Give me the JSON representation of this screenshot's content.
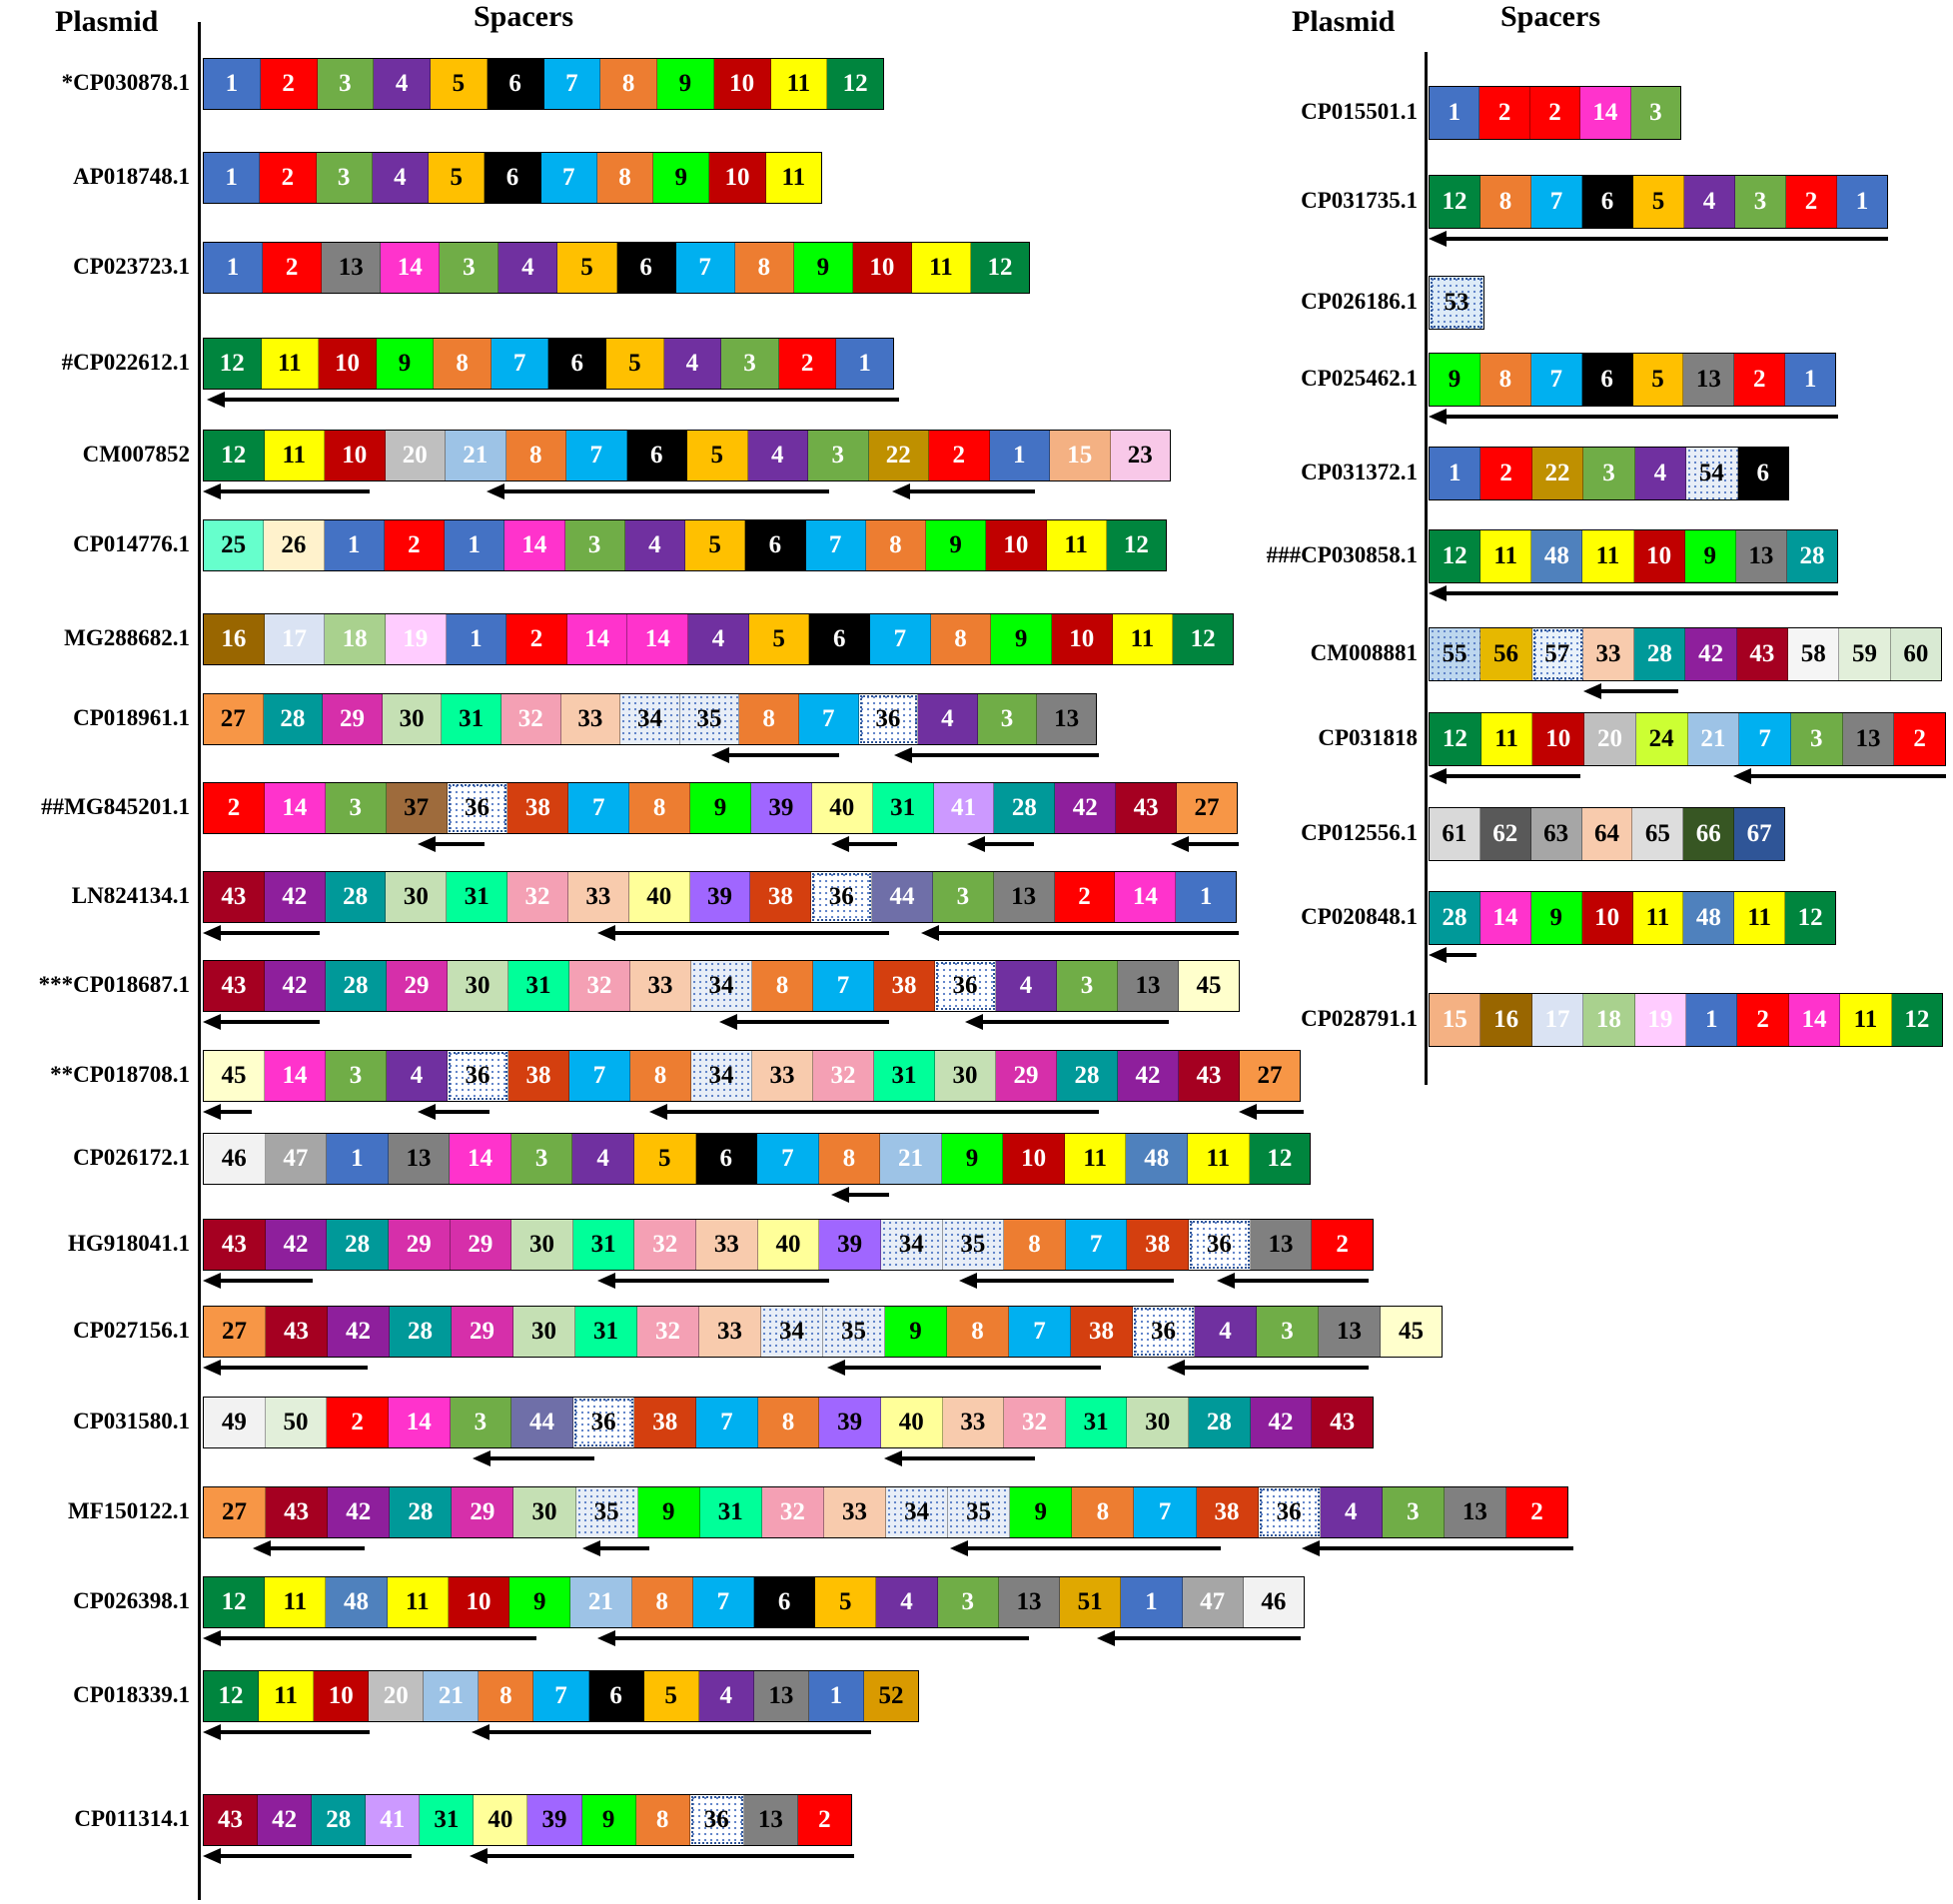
{
  "headers": {
    "left": {
      "plasmid": "Plasmid",
      "spacers": "Spacers"
    },
    "right": {
      "plasmid": "Plasmid",
      "spacers": "Spacers"
    }
  },
  "spacer_colors": {
    "1": "#4472C4",
    "2": "#FF0000",
    "3": "#70AD47",
    "4": "#7030A0",
    "5": "#FFC000",
    "6": "#000000",
    "7": "#00B0F0",
    "8": "#ED7D31",
    "9": "#00FF00",
    "10": "#C00000",
    "11": "#FFFF00",
    "12": "#00853E",
    "13": "#808080",
    "14": "#FF33CC",
    "15": "#F4B183",
    "16": "#996600",
    "17": "#DAE3F3",
    "18": "#A9D18E",
    "19": "#FFCCFF",
    "20": "#BFBFBF",
    "21": "#9DC3E6",
    "22": "#BF9000",
    "23": "#F8C8E8",
    "24": "#CCFF33",
    "25": "#66FFCC",
    "26": "#FFF2CC",
    "27": "#F79646",
    "28": "#009999",
    "29": "#D62FAA",
    "30": "#C5E0B4",
    "31": "#00FF99",
    "32": "#F4A0B4",
    "33": "#F8CBAD",
    "34": "#E8EEF7",
    "35": "#E8EEF7",
    "36": "#FFFFFF",
    "37": "#9E6B3C",
    "38": "#D43F0F",
    "39": "#A066FF",
    "40": "#FFFF99",
    "41": "#CC99FF",
    "42": "#8E1F9C",
    "43": "#A50021",
    "44": "#6F6FA8",
    "45": "#FFFFCC",
    "46": "#F2F2F2",
    "47": "#A6A6A6",
    "48": "#4F81BD",
    "49": "#F2F2F2",
    "50": "#E2EFDA",
    "51": "#E0A800",
    "52": "#D99A00",
    "53": "#DDEBF7",
    "54": "#E8EEF7",
    "55": "#BDD7EE",
    "56": "#E6B800",
    "57": "#EAF2FA",
    "58": "#F5F5F5",
    "59": "#E2EFDA",
    "60": "#D9EAD3",
    "61": "#D9D9D9",
    "62": "#595959",
    "63": "#A6A6A6",
    "64": "#F8CBAD",
    "65": "#DDDDDD",
    "66": "#375623",
    "67": "#2F5597"
  },
  "light_text": [
    "1",
    "2",
    "3",
    "4",
    "6",
    "7",
    "8",
    "10",
    "12",
    "14",
    "15",
    "16",
    "17",
    "18",
    "19",
    "20",
    "21",
    "22",
    "28",
    "29",
    "32",
    "38",
    "41",
    "42",
    "43",
    "44",
    "47",
    "48",
    "62",
    "66",
    "67"
  ],
  "left": [
    {
      "label": "*CP030878.1",
      "spacers": [
        "1",
        "2",
        "3",
        "4",
        "5",
        "6",
        "7",
        "8",
        "9",
        "10",
        "11",
        "12"
      ]
    },
    {
      "label": "AP018748.1",
      "spacers": [
        "1",
        "2",
        "3",
        "4",
        "5",
        "6",
        "7",
        "8",
        "9",
        "10",
        "11"
      ]
    },
    {
      "label": "CP023723.1",
      "spacers": [
        "1",
        "2",
        "13",
        "14",
        "3",
        "4",
        "5",
        "6",
        "7",
        "8",
        "9",
        "10",
        "11",
        "12"
      ]
    },
    {
      "label": "#CP022612.1",
      "spacers": [
        "12",
        "11",
        "10",
        "9",
        "8",
        "7",
        "6",
        "5",
        "4",
        "3",
        "2",
        "1"
      ]
    },
    {
      "label": "CM007852",
      "spacers": [
        "12",
        "11",
        "10",
        "20",
        "21",
        "8",
        "7",
        "6",
        "5",
        "4",
        "3",
        "22",
        "2",
        "1",
        "15",
        "23"
      ]
    },
    {
      "label": "CP014776.1",
      "spacers": [
        "25",
        "26",
        "1",
        "2",
        "1",
        "14",
        "3",
        "4",
        "5",
        "6",
        "7",
        "8",
        "9",
        "10",
        "11",
        "12"
      ]
    },
    {
      "label": "MG288682.1",
      "spacers": [
        "16",
        "17",
        "18",
        "19",
        "1",
        "2",
        "14",
        "14",
        "4",
        "5",
        "6",
        "7",
        "8",
        "9",
        "10",
        "11",
        "12"
      ]
    },
    {
      "label": "CP018961.1",
      "spacers": [
        "27",
        "28",
        "29",
        "30",
        "31",
        "32",
        "33",
        "34",
        "35",
        "8",
        "7",
        "36",
        "4",
        "3",
        "13"
      ]
    },
    {
      "label": "##MG845201.1",
      "spacers": [
        "2",
        "14",
        "3",
        "37",
        "36",
        "38",
        "7",
        "8",
        "9",
        "39",
        "40",
        "31",
        "41",
        "28",
        "42",
        "43",
        "27"
      ]
    },
    {
      "label": "LN824134.1",
      "spacers": [
        "43",
        "42",
        "28",
        "30",
        "31",
        "32",
        "33",
        "40",
        "39",
        "38",
        "36",
        "44",
        "3",
        "13",
        "2",
        "14",
        "1"
      ]
    },
    {
      "label": "***CP018687.1",
      "spacers": [
        "43",
        "42",
        "28",
        "29",
        "30",
        "31",
        "32",
        "33",
        "34",
        "8",
        "7",
        "38",
        "36",
        "4",
        "3",
        "13",
        "45"
      ]
    },
    {
      "label": "**CP018708.1",
      "spacers": [
        "45",
        "14",
        "3",
        "4",
        "36",
        "38",
        "7",
        "8",
        "34",
        "33",
        "32",
        "31",
        "30",
        "29",
        "28",
        "42",
        "43",
        "27"
      ]
    },
    {
      "label": "CP026172.1",
      "spacers": [
        "46",
        "47",
        "1",
        "13",
        "14",
        "3",
        "4",
        "5",
        "6",
        "7",
        "8",
        "21",
        "9",
        "10",
        "11",
        "48",
        "11",
        "12"
      ]
    },
    {
      "label": "HG918041.1",
      "spacers": [
        "43",
        "42",
        "28",
        "29",
        "29",
        "30",
        "31",
        "32",
        "33",
        "40",
        "39",
        "34",
        "35",
        "8",
        "7",
        "38",
        "36",
        "13",
        "2"
      ]
    },
    {
      "label": "CP027156.1",
      "spacers": [
        "27",
        "43",
        "42",
        "28",
        "29",
        "30",
        "31",
        "32",
        "33",
        "34",
        "35",
        "9",
        "8",
        "7",
        "38",
        "36",
        "4",
        "3",
        "13",
        "45"
      ]
    },
    {
      "label": "CP031580.1",
      "spacers": [
        "49",
        "50",
        "2",
        "14",
        "3",
        "44",
        "36",
        "38",
        "7",
        "8",
        "39",
        "40",
        "33",
        "32",
        "31",
        "30",
        "28",
        "42",
        "43"
      ]
    },
    {
      "label": "MF150122.1",
      "spacers": [
        "27",
        "43",
        "42",
        "28",
        "29",
        "30",
        "35",
        "9",
        "31",
        "32",
        "33",
        "34",
        "35",
        "9",
        "8",
        "7",
        "38",
        "36",
        "4",
        "3",
        "13",
        "2"
      ]
    },
    {
      "label": "CP026398.1",
      "spacers": [
        "12",
        "11",
        "48",
        "11",
        "10",
        "9",
        "21",
        "8",
        "7",
        "6",
        "5",
        "4",
        "3",
        "13",
        "51",
        "1",
        "47",
        "46"
      ]
    },
    {
      "label": "CP018339.1",
      "spacers": [
        "12",
        "11",
        "10",
        "20",
        "21",
        "8",
        "7",
        "6",
        "5",
        "4",
        "13",
        "1",
        "52"
      ]
    },
    {
      "label": "CP011314.1",
      "spacers": [
        "43",
        "42",
        "28",
        "41",
        "31",
        "40",
        "39",
        "9",
        "8",
        "36",
        "13",
        "2"
      ]
    }
  ],
  "right": [
    {
      "label": "CP015501.1",
      "spacers": [
        "1",
        "2",
        "2",
        "14",
        "3"
      ]
    },
    {
      "label": "CP031735.1",
      "spacers": [
        "12",
        "8",
        "7",
        "6",
        "5",
        "4",
        "3",
        "2",
        "1"
      ]
    },
    {
      "label": "CP026186.1",
      "spacers": [
        "53"
      ]
    },
    {
      "label": "CP025462.1",
      "spacers": [
        "9",
        "8",
        "7",
        "6",
        "5",
        "13",
        "2",
        "1"
      ]
    },
    {
      "label": "CP031372.1",
      "spacers": [
        "1",
        "2",
        "22",
        "3",
        "4",
        "54",
        "6"
      ]
    },
    {
      "label": "###CP030858.1",
      "spacers": [
        "12",
        "11",
        "48",
        "11",
        "10",
        "9",
        "13",
        "28"
      ]
    },
    {
      "label": "CM008881",
      "spacers": [
        "55",
        "56",
        "57",
        "33",
        "28",
        "42",
        "43",
        "58",
        "59",
        "60"
      ]
    },
    {
      "label": "CP031818",
      "spacers": [
        "12",
        "11",
        "10",
        "20",
        "24",
        "21",
        "7",
        "3",
        "13",
        "2"
      ]
    },
    {
      "label": "CP012556.1",
      "spacers": [
        "61",
        "62",
        "63",
        "64",
        "65",
        "66",
        "67"
      ]
    },
    {
      "label": "CP020848.1",
      "spacers": [
        "28",
        "14",
        "9",
        "10",
        "11",
        "48",
        "11",
        "12"
      ]
    },
    {
      "label": "CP028791.1",
      "spacers": [
        "15",
        "16",
        "17",
        "18",
        "19",
        "1",
        "2",
        "14",
        "11",
        "12"
      ]
    }
  ]
}
